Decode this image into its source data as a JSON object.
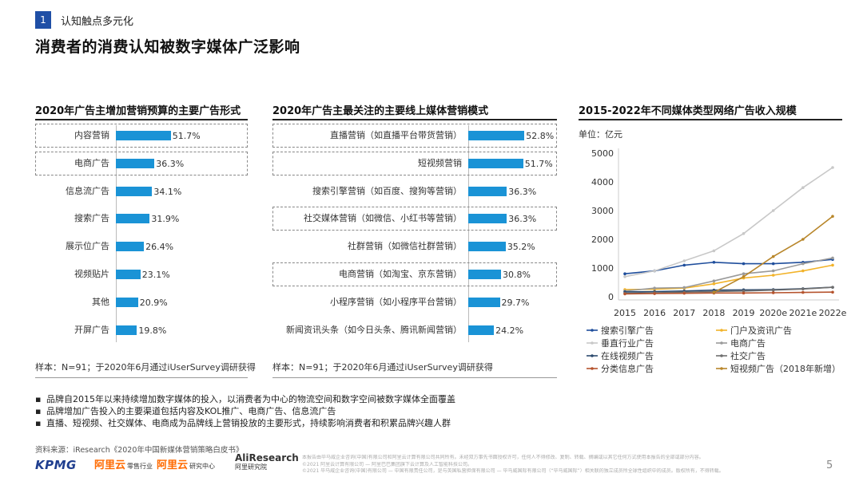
{
  "section": {
    "number": "1",
    "label": "认知触点多元化"
  },
  "page_title": "消费者的消费认知被数字媒体广泛影响",
  "panel1": {
    "title": "2020年广告主增加营销预算的主要广告形式",
    "sample": "样本：N=91；于2020年6月通过iUserSurvey调研获得"
  },
  "panel2": {
    "title": "2020年广告主最关注的主要线上媒体营销模式",
    "sample": "样本：N=91；于2020年6月通过iUserSurvey调研获得"
  },
  "panel3": {
    "title": "2015-2022年不同媒体类型网络广告收入规模",
    "unit": "单位：亿元"
  },
  "bullets": [
    "品牌自2015年以来持续增加数字媒体的投入，以消费者为中心的物流空间和数字空间被数字媒体全面覆盖",
    "品牌增加广告投入的主要渠道包括内容及KOL推广、电商广告、信息流广告",
    "直播、短视频、社交媒体、电商成为品牌线上营销投放的主要形式，持续影响消费者和积累品牌兴趣人群"
  ],
  "source": "资料来源：iResearch《2020年中国新媒体营销策略白皮书》",
  "logos": {
    "kpmg": "KPMG",
    "aliyun1": "阿里云",
    "aliyun1_sub": "零售行业",
    "aliyun2": "阿里云",
    "aliyun2_sub": "研究中心",
    "aliresearch": "AliResearch",
    "aliresearch_sub": "阿里研究院"
  },
  "fineprint": [
    "本报告由毕马威企业咨询(中国)有限公司和阿里云计算有限公司共同所有。未经双方事先书面授权许可，任何人不得修改、复制、转载、摘编或以其它任何方式使用本报告的全部或部分内容。",
    "©2021 阿里云计算有限公司 — 阿里巴巴集团旗下云计算及人工智能科技公司。",
    "©2021 毕马威企业咨询(中国)有限公司 — 中国有限责任公司，是与英国私营担保有限公司 — 毕马威国际有限公司（“毕马威国际”）相关联的独立成员所全球性组织中的成员。版权所有，不得转载。"
  ],
  "page_number": "5",
  "chart_data": [
    {
      "type": "bar",
      "orientation": "horizontal",
      "title": "2020年广告主增加营销预算的主要广告形式",
      "unit": "%",
      "categories": [
        "内容营销",
        "电商广告",
        "信息流广告",
        "搜索广告",
        "展示位广告",
        "视频贴片",
        "其他",
        "开屏广告"
      ],
      "values": [
        51.7,
        36.3,
        34.1,
        31.9,
        26.4,
        23.1,
        20.9,
        19.8
      ],
      "value_labels": [
        "51.7%",
        "36.3%",
        "34.1%",
        "31.9%",
        "26.4%",
        "23.1%",
        "20.9%",
        "19.8%"
      ],
      "highlighted": [
        "内容营销",
        "电商广告"
      ],
      "bar_color": "#1a93d6"
    },
    {
      "type": "bar",
      "orientation": "horizontal",
      "title": "2020年广告主最关注的主要线上媒体营销模式",
      "unit": "%",
      "categories": [
        "直播营销（如直播平台带货营销）",
        "短视频营销",
        "搜索引擎营销（如百度、搜狗等营销）",
        "社交媒体营销（如微信、小红书等营销）",
        "社群营销（如微信社群营销）",
        "电商营销（如淘宝、京东营销）",
        "小程序营销（如小程序平台营销）",
        "新闻资讯头条（如今日头条、腾讯新闻营销）"
      ],
      "values": [
        52.8,
        51.7,
        36.3,
        36.3,
        35.2,
        30.8,
        29.7,
        24.2
      ],
      "value_labels": [
        "52.8%",
        "51.7%",
        "36.3%",
        "36.3%",
        "35.2%",
        "30.8%",
        "29.7%",
        "24.2%"
      ],
      "highlighted": [
        "直播营销（如直播平台带货营销）",
        "短视频营销",
        "社交媒体营销（如微信、小红书等营销）",
        "电商营销（如淘宝、京东营销）"
      ],
      "bar_color": "#1a93d6"
    },
    {
      "type": "line",
      "title": "2015-2022年不同媒体类型网络广告收入规模",
      "unit": "亿元",
      "x": [
        "2015",
        "2016",
        "2017",
        "2018",
        "2019",
        "2020e",
        "2021e",
        "2022e"
      ],
      "ylim": [
        0,
        5000
      ],
      "yticks": [
        0,
        1000,
        2000,
        3000,
        4000,
        5000
      ],
      "legend_position": "bottom",
      "series": [
        {
          "name": "搜索引擎广告",
          "color": "#1f4e9c",
          "values": [
            800,
            900,
            1100,
            1200,
            1150,
            1150,
            1200,
            1300
          ]
        },
        {
          "name": "门户及资讯广告",
          "color": "#f2b32a",
          "values": [
            250,
            260,
            300,
            450,
            650,
            750,
            900,
            1100
          ]
        },
        {
          "name": "垂直行业广告",
          "color": "#c8c8c8",
          "values": [
            700,
            900,
            1250,
            1600,
            2200,
            3000,
            3800,
            4500
          ]
        },
        {
          "name": "电商广告",
          "color": "#9a9a9a",
          "values": [
            200,
            300,
            320,
            550,
            800,
            900,
            1150,
            1350
          ]
        },
        {
          "name": "在线视频广告",
          "color": "#2c4a6e",
          "values": [
            170,
            180,
            200,
            230,
            240,
            250,
            280,
            330
          ]
        },
        {
          "name": "社交广告",
          "color": "#6f6f6f",
          "values": [
            120,
            140,
            160,
            180,
            200,
            230,
            270,
            330
          ]
        },
        {
          "name": "分类信息广告",
          "color": "#b5532d",
          "values": [
            100,
            110,
            120,
            130,
            130,
            140,
            150,
            160
          ]
        },
        {
          "name": "短视频广告（2018年新增）",
          "color": "#b8862a",
          "values": [
            null,
            null,
            null,
            150,
            700,
            1400,
            2000,
            2800
          ]
        }
      ]
    }
  ]
}
